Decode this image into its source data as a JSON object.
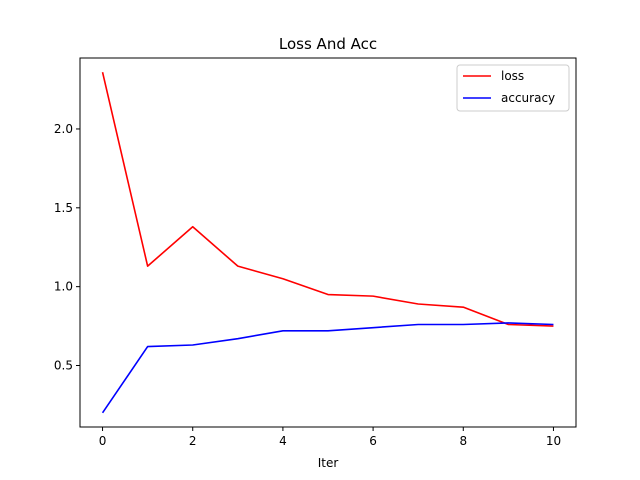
{
  "chart_data": {
    "type": "line",
    "title": "Loss And Acc",
    "xlabel": "Iter",
    "ylabel": "",
    "xlim": [
      -0.5,
      10.5
    ],
    "ylim": [
      0.11,
      2.45
    ],
    "xticks": [
      0,
      2,
      4,
      6,
      8,
      10
    ],
    "yticks": [
      0.5,
      1.0,
      1.5,
      2.0
    ],
    "ytick_labels": [
      "0.5",
      "1.0",
      "1.5",
      "2.0"
    ],
    "x": [
      0,
      1,
      2,
      3,
      4,
      5,
      6,
      7,
      8,
      9,
      10
    ],
    "grid": false,
    "legend_position": "top-right",
    "series": [
      {
        "name": "loss",
        "color": "#ff0000",
        "values": [
          2.36,
          1.13,
          1.38,
          1.13,
          1.05,
          0.95,
          0.94,
          0.89,
          0.87,
          0.76,
          0.75
        ]
      },
      {
        "name": "accuracy",
        "color": "#0000ff",
        "values": [
          0.2,
          0.62,
          0.63,
          0.67,
          0.72,
          0.72,
          0.74,
          0.76,
          0.76,
          0.77,
          0.76
        ]
      }
    ]
  }
}
